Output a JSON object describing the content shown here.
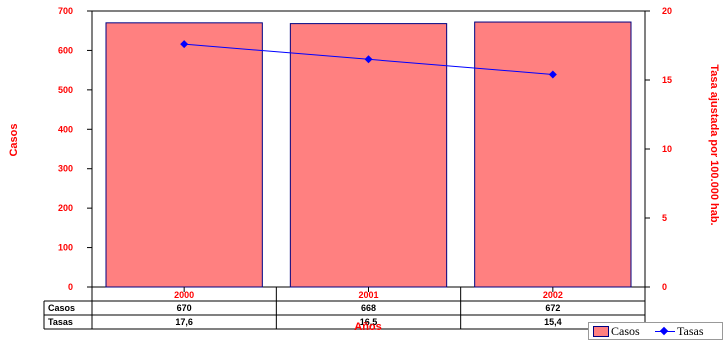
{
  "chart_data": {
    "type": "bar",
    "categories": [
      "2000",
      "2001",
      "2002"
    ],
    "series": [
      {
        "name": "Casos",
        "type": "bar",
        "axis": "left",
        "values": [
          670,
          668,
          672
        ],
        "color": "#ff8080",
        "edge_color": "#000080"
      },
      {
        "name": "Tasas",
        "type": "line",
        "axis": "right",
        "values": [
          17.6,
          16.5,
          15.4
        ],
        "color": "#0000ff",
        "marker": "diamond"
      }
    ],
    "xlabel": "Años",
    "ylabel": "Casos",
    "y2label": "Tasa ajustada por 100.000 hab.",
    "ylim": [
      0,
      700
    ],
    "yticks": [
      "0",
      "100",
      "200",
      "300",
      "400",
      "500",
      "600",
      "700"
    ],
    "y2lim": [
      0,
      20
    ],
    "y2ticks": [
      "0",
      "5",
      "10",
      "15",
      "20"
    ],
    "legend_position": "bottom-right",
    "grid": false,
    "axis_label_color": "#ff0000",
    "table": {
      "row_labels": [
        "Casos",
        "Tasas"
      ],
      "rows": [
        [
          "670",
          "668",
          "672"
        ],
        [
          "17,6",
          "16,5",
          "15,4"
        ]
      ]
    }
  }
}
